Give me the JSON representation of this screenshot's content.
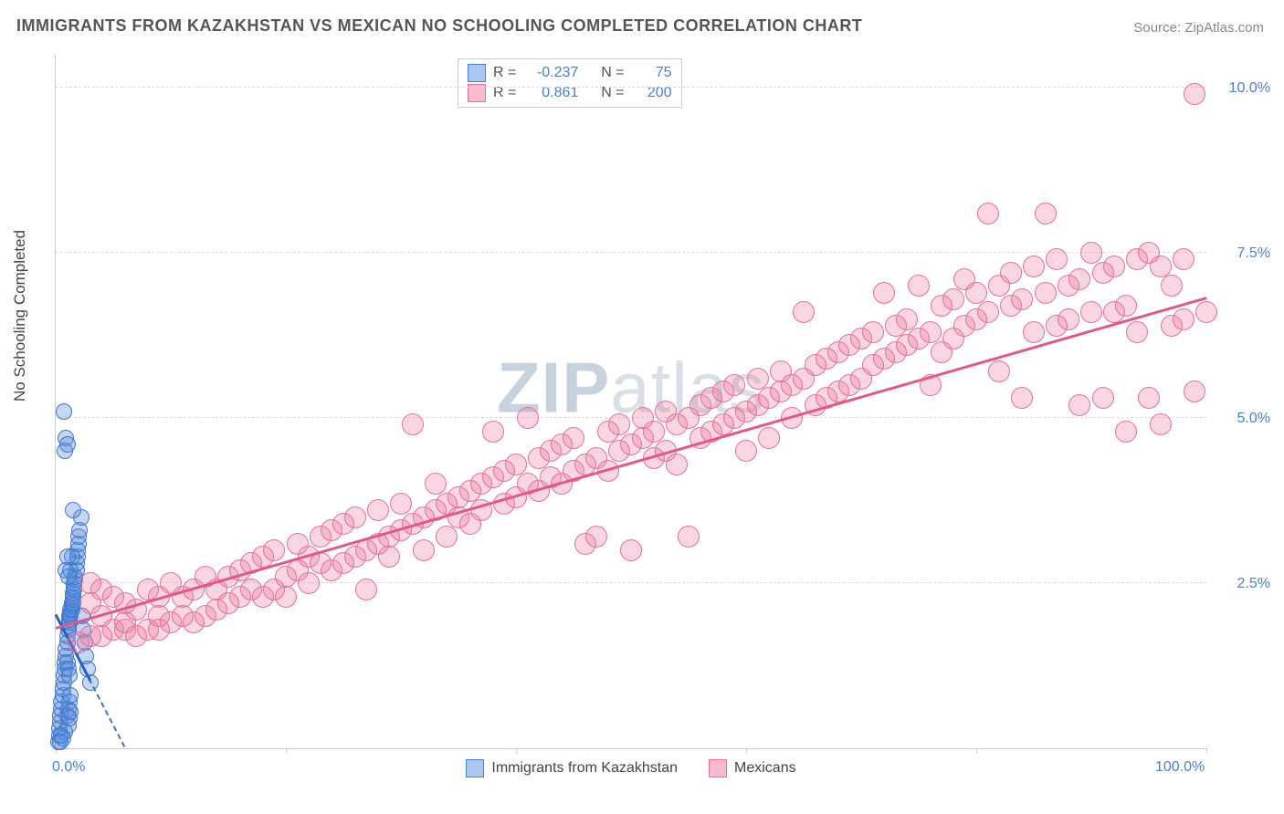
{
  "title": "IMMIGRANTS FROM KAZAKHSTAN VS MEXICAN NO SCHOOLING COMPLETED CORRELATION CHART",
  "source_prefix": "Source: ",
  "source_text": "ZipAtlas.com",
  "watermark_a": "ZIP",
  "watermark_b": "atlas",
  "chart": {
    "type": "scatter",
    "ylabel": "No Schooling Completed",
    "xlim": [
      0,
      100
    ],
    "ylim": [
      0,
      10.5
    ],
    "x_ticks": [
      0,
      20,
      40,
      60,
      80,
      100
    ],
    "x_tick_labels_shown": {
      "0": "0.0%",
      "100": "100.0%"
    },
    "y_gridlines": [
      2.5,
      5.0,
      7.5,
      10.0
    ],
    "y_tick_labels": {
      "2.5": "2.5%",
      "5.0": "5.0%",
      "7.5": "7.5%",
      "10.0": "10.0%"
    },
    "legend_bottom": [
      {
        "label": "Immigrants from Kazakhstan",
        "fill": "#a9c7f0",
        "stroke": "#4a7fd6"
      },
      {
        "label": "Mexicans",
        "fill": "#f6bccd",
        "stroke": "#e76f99"
      }
    ],
    "legend_box": [
      {
        "swatch_fill": "#a9c7f0",
        "swatch_stroke": "#4a7fd6",
        "r_label": "R =",
        "r": "-0.237",
        "n_label": "N =",
        "n": "75"
      },
      {
        "swatch_fill": "#f6bccd",
        "swatch_stroke": "#e76f99",
        "r_label": "R =",
        "r": "0.861",
        "n_label": "N =",
        "n": "200"
      }
    ],
    "series": [
      {
        "name": "kazakhstan",
        "fill": "rgba(90,140,220,0.35)",
        "stroke": "#3f74cc",
        "marker_radius": 8,
        "trend": {
          "x0": 0,
          "y0": 2.0,
          "x1": 6,
          "y1": 0,
          "dashed": true,
          "color": "#3f74cc",
          "width": 2
        },
        "solid_segment": {
          "x0": 0,
          "y0": 2.0,
          "x1": 3,
          "y1": 1.0,
          "color": "#2b5fbf",
          "width": 3
        },
        "points": [
          [
            0.2,
            0.1
          ],
          [
            0.3,
            0.2
          ],
          [
            0.3,
            0.3
          ],
          [
            0.4,
            0.4
          ],
          [
            0.4,
            0.5
          ],
          [
            0.5,
            0.6
          ],
          [
            0.5,
            0.7
          ],
          [
            0.6,
            0.8
          ],
          [
            0.6,
            0.9
          ],
          [
            0.7,
            1.0
          ],
          [
            0.7,
            1.1
          ],
          [
            0.8,
            1.2
          ],
          [
            0.8,
            1.3
          ],
          [
            0.9,
            1.4
          ],
          [
            0.9,
            1.5
          ],
          [
            1.0,
            1.6
          ],
          [
            1.0,
            1.7
          ],
          [
            1.1,
            1.8
          ],
          [
            1.1,
            1.85
          ],
          [
            1.2,
            1.9
          ],
          [
            1.2,
            1.95
          ],
          [
            1.2,
            2.0
          ],
          [
            1.3,
            2.0
          ],
          [
            1.3,
            2.05
          ],
          [
            1.3,
            2.1
          ],
          [
            1.4,
            2.1
          ],
          [
            1.4,
            2.15
          ],
          [
            1.4,
            2.2
          ],
          [
            1.5,
            2.2
          ],
          [
            1.5,
            2.25
          ],
          [
            1.5,
            2.3
          ],
          [
            1.5,
            2.35
          ],
          [
            1.6,
            2.4
          ],
          [
            1.6,
            2.45
          ],
          [
            1.6,
            2.5
          ],
          [
            1.7,
            2.55
          ],
          [
            1.7,
            2.6
          ],
          [
            1.8,
            2.7
          ],
          [
            1.8,
            2.8
          ],
          [
            1.9,
            2.9
          ],
          [
            1.9,
            3.0
          ],
          [
            2.0,
            3.1
          ],
          [
            2.0,
            3.2
          ],
          [
            2.1,
            3.3
          ],
          [
            2.2,
            3.5
          ],
          [
            2.3,
            2.0
          ],
          [
            2.4,
            1.8
          ],
          [
            2.5,
            1.6
          ],
          [
            2.6,
            1.4
          ],
          [
            2.8,
            1.2
          ],
          [
            3.0,
            1.0
          ],
          [
            0.8,
            4.5
          ],
          [
            0.9,
            4.7
          ],
          [
            1.0,
            4.6
          ],
          [
            0.7,
            5.1
          ],
          [
            1.3,
            2.7
          ],
          [
            1.4,
            2.9
          ],
          [
            1.0,
            1.3
          ],
          [
            1.1,
            1.2
          ],
          [
            1.2,
            1.1
          ],
          [
            1.0,
            0.5
          ],
          [
            1.1,
            0.6
          ],
          [
            1.2,
            0.7
          ],
          [
            1.3,
            0.8
          ],
          [
            1.1,
            0.35
          ],
          [
            1.2,
            0.45
          ],
          [
            1.3,
            0.55
          ],
          [
            0.8,
            0.25
          ],
          [
            0.6,
            0.15
          ],
          [
            0.5,
            0.2
          ],
          [
            0.4,
            0.1
          ],
          [
            0.9,
            2.7
          ],
          [
            1.0,
            2.9
          ],
          [
            1.1,
            2.6
          ],
          [
            1.5,
            3.6
          ]
        ]
      },
      {
        "name": "mexicans",
        "fill": "rgba(236,120,160,0.30)",
        "stroke": "#e76f99",
        "marker_radius": 11,
        "trend": {
          "x0": 0,
          "y0": 1.8,
          "x1": 100,
          "y1": 6.8,
          "dashed": false,
          "color": "#e05a88",
          "width": 2.5
        },
        "points": [
          [
            2,
            1.6
          ],
          [
            3,
            1.7
          ],
          [
            3,
            2.2
          ],
          [
            4,
            2.0
          ],
          [
            4,
            1.7
          ],
          [
            5,
            1.8
          ],
          [
            5,
            2.3
          ],
          [
            6,
            1.8
          ],
          [
            6,
            1.9
          ],
          [
            6,
            2.2
          ],
          [
            7,
            1.7
          ],
          [
            7,
            2.1
          ],
          [
            8,
            1.8
          ],
          [
            8,
            2.4
          ],
          [
            9,
            1.8
          ],
          [
            9,
            2.3
          ],
          [
            9,
            2.0
          ],
          [
            10,
            1.9
          ],
          [
            10,
            2.5
          ],
          [
            11,
            2.0
          ],
          [
            11,
            2.3
          ],
          [
            12,
            1.9
          ],
          [
            12,
            2.4
          ],
          [
            13,
            2.0
          ],
          [
            13,
            2.6
          ],
          [
            14,
            2.1
          ],
          [
            14,
            2.4
          ],
          [
            15,
            2.6
          ],
          [
            15,
            2.2
          ],
          [
            16,
            2.3
          ],
          [
            16,
            2.7
          ],
          [
            17,
            2.4
          ],
          [
            17,
            2.8
          ],
          [
            18,
            2.3
          ],
          [
            18,
            2.9
          ],
          [
            19,
            2.4
          ],
          [
            19,
            3.0
          ],
          [
            20,
            2.6
          ],
          [
            20,
            2.3
          ],
          [
            21,
            2.7
          ],
          [
            21,
            3.1
          ],
          [
            22,
            2.5
          ],
          [
            22,
            2.9
          ],
          [
            23,
            2.8
          ],
          [
            23,
            3.2
          ],
          [
            24,
            2.7
          ],
          [
            24,
            3.3
          ],
          [
            25,
            2.8
          ],
          [
            25,
            3.4
          ],
          [
            26,
            2.9
          ],
          [
            26,
            3.5
          ],
          [
            27,
            2.4
          ],
          [
            27,
            3.0
          ],
          [
            28,
            3.1
          ],
          [
            28,
            3.6
          ],
          [
            29,
            3.2
          ],
          [
            29,
            2.9
          ],
          [
            30,
            3.3
          ],
          [
            30,
            3.7
          ],
          [
            31,
            3.4
          ],
          [
            31,
            4.9
          ],
          [
            32,
            3.0
          ],
          [
            32,
            3.5
          ],
          [
            33,
            3.6
          ],
          [
            33,
            4.0
          ],
          [
            34,
            3.2
          ],
          [
            34,
            3.7
          ],
          [
            35,
            3.5
          ],
          [
            35,
            3.8
          ],
          [
            36,
            3.9
          ],
          [
            36,
            3.4
          ],
          [
            37,
            4.0
          ],
          [
            37,
            3.6
          ],
          [
            38,
            4.1
          ],
          [
            38,
            4.8
          ],
          [
            39,
            3.7
          ],
          [
            39,
            4.2
          ],
          [
            40,
            4.3
          ],
          [
            40,
            3.8
          ],
          [
            41,
            5.0
          ],
          [
            41,
            4.0
          ],
          [
            42,
            4.4
          ],
          [
            42,
            3.9
          ],
          [
            43,
            4.1
          ],
          [
            43,
            4.5
          ],
          [
            44,
            4.6
          ],
          [
            44,
            4.0
          ],
          [
            45,
            4.2
          ],
          [
            45,
            4.7
          ],
          [
            46,
            3.1
          ],
          [
            46,
            4.3
          ],
          [
            47,
            4.4
          ],
          [
            47,
            3.2
          ],
          [
            48,
            4.8
          ],
          [
            48,
            4.2
          ],
          [
            49,
            4.5
          ],
          [
            49,
            4.9
          ],
          [
            50,
            4.6
          ],
          [
            50,
            3.0
          ],
          [
            51,
            4.7
          ],
          [
            51,
            5.0
          ],
          [
            52,
            4.4
          ],
          [
            52,
            4.8
          ],
          [
            53,
            4.5
          ],
          [
            53,
            5.1
          ],
          [
            54,
            4.9
          ],
          [
            54,
            4.3
          ],
          [
            55,
            5.0
          ],
          [
            55,
            3.2
          ],
          [
            56,
            5.2
          ],
          [
            56,
            4.7
          ],
          [
            57,
            4.8
          ],
          [
            57,
            5.3
          ],
          [
            58,
            4.9
          ],
          [
            58,
            5.4
          ],
          [
            59,
            5.0
          ],
          [
            59,
            5.5
          ],
          [
            60,
            5.1
          ],
          [
            60,
            4.5
          ],
          [
            61,
            5.6
          ],
          [
            61,
            5.2
          ],
          [
            62,
            5.3
          ],
          [
            62,
            4.7
          ],
          [
            63,
            5.4
          ],
          [
            63,
            5.7
          ],
          [
            64,
            5.0
          ],
          [
            64,
            5.5
          ],
          [
            65,
            5.6
          ],
          [
            65,
            6.6
          ],
          [
            66,
            5.2
          ],
          [
            66,
            5.8
          ],
          [
            67,
            5.3
          ],
          [
            67,
            5.9
          ],
          [
            68,
            5.4
          ],
          [
            68,
            6.0
          ],
          [
            69,
            5.5
          ],
          [
            69,
            6.1
          ],
          [
            70,
            5.6
          ],
          [
            70,
            6.2
          ],
          [
            71,
            6.3
          ],
          [
            71,
            5.8
          ],
          [
            72,
            6.9
          ],
          [
            72,
            5.9
          ],
          [
            73,
            6.0
          ],
          [
            73,
            6.4
          ],
          [
            74,
            6.1
          ],
          [
            74,
            6.5
          ],
          [
            75,
            6.2
          ],
          [
            75,
            7.0
          ],
          [
            76,
            6.3
          ],
          [
            76,
            5.5
          ],
          [
            77,
            6.7
          ],
          [
            77,
            6.0
          ],
          [
            78,
            6.8
          ],
          [
            78,
            6.2
          ],
          [
            79,
            7.1
          ],
          [
            79,
            6.4
          ],
          [
            80,
            6.5
          ],
          [
            80,
            6.9
          ],
          [
            81,
            8.1
          ],
          [
            81,
            6.6
          ],
          [
            82,
            7.0
          ],
          [
            82,
            5.7
          ],
          [
            83,
            6.7
          ],
          [
            83,
            7.2
          ],
          [
            84,
            6.8
          ],
          [
            84,
            5.3
          ],
          [
            85,
            7.3
          ],
          [
            85,
            6.3
          ],
          [
            86,
            8.1
          ],
          [
            86,
            6.9
          ],
          [
            87,
            6.4
          ],
          [
            87,
            7.4
          ],
          [
            88,
            7.0
          ],
          [
            88,
            6.5
          ],
          [
            89,
            7.1
          ],
          [
            89,
            5.2
          ],
          [
            90,
            7.5
          ],
          [
            90,
            6.6
          ],
          [
            91,
            5.3
          ],
          [
            91,
            7.2
          ],
          [
            92,
            6.6
          ],
          [
            92,
            7.3
          ],
          [
            93,
            6.7
          ],
          [
            93,
            4.8
          ],
          [
            94,
            7.4
          ],
          [
            94,
            6.3
          ],
          [
            95,
            5.3
          ],
          [
            95,
            7.5
          ],
          [
            96,
            7.3
          ],
          [
            96,
            4.9
          ],
          [
            97,
            6.4
          ],
          [
            97,
            7.0
          ],
          [
            98,
            6.5
          ],
          [
            98,
            7.4
          ],
          [
            99,
            9.9
          ],
          [
            99,
            5.4
          ],
          [
            100,
            6.6
          ],
          [
            4,
            2.4
          ],
          [
            3,
            2.5
          ]
        ]
      }
    ]
  }
}
